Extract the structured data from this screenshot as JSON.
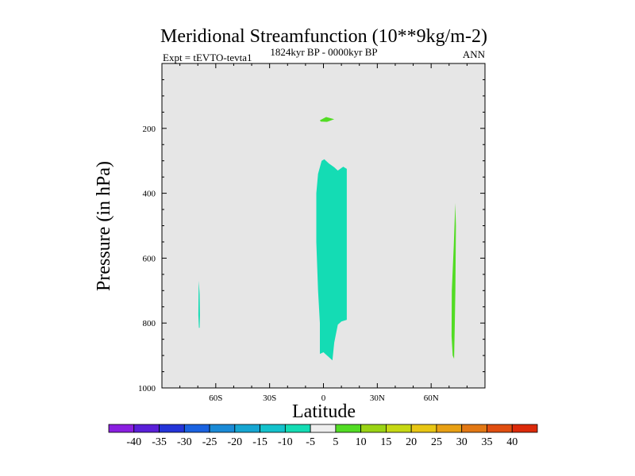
{
  "chart_data": {
    "type": "contour",
    "title": "Meridional Streamfunction (10**9kg/m-2)",
    "left_label": "Expt = tEVTO-tevta1",
    "center_label": "1824kyr BP - 0000kyr BP",
    "right_label": "ANN",
    "xlabel": "Latitude",
    "ylabel": "Pressure (in hPa)",
    "xlim": [
      -90,
      90
    ],
    "ylim": [
      1000,
      0
    ],
    "x_ticks": [
      {
        "v": -60,
        "label": "60S"
      },
      {
        "v": -30,
        "label": "30S"
      },
      {
        "v": 0,
        "label": "0"
      },
      {
        "v": 30,
        "label": "30N"
      },
      {
        "v": 60,
        "label": "60N"
      }
    ],
    "y_ticks": [
      {
        "v": 200,
        "label": "200"
      },
      {
        "v": 400,
        "label": "400"
      },
      {
        "v": 600,
        "label": "600"
      },
      {
        "v": 800,
        "label": "800"
      },
      {
        "v": 1000,
        "label": "1000"
      }
    ],
    "background_color": "#e6e6e6",
    "colorbar": {
      "labels": [
        "-40",
        "-35",
        "-30",
        "-25",
        "-20",
        "-15",
        "-10",
        "-5",
        "5",
        "10",
        "15",
        "20",
        "25",
        "30",
        "35",
        "40"
      ],
      "colors": [
        "#8a1fe0",
        "#5a1fd8",
        "#2434d8",
        "#1a62e0",
        "#1a8ad6",
        "#16a6d2",
        "#14c2cc",
        "#14dcb4",
        "#eeeeee",
        "#52dc24",
        "#9ad414",
        "#c6d814",
        "#e8c614",
        "#e8a014",
        "#e27814",
        "#e04e10",
        "#dc2a0a"
      ]
    },
    "regions": [
      {
        "name": "cell-green-upper",
        "category": "5 to 10",
        "color": "#52dc24",
        "polygon": [
          [
            -2,
            175
          ],
          [
            1.5,
            165
          ],
          [
            6,
            172
          ],
          [
            2,
            180
          ],
          [
            -1.5,
            179
          ]
        ]
      },
      {
        "name": "cell-teal-central",
        "category": "-10 to -5",
        "color": "#14dcb4",
        "polygon": [
          [
            -3,
            340
          ],
          [
            -1,
            300
          ],
          [
            0.5,
            295
          ],
          [
            3,
            308
          ],
          [
            6,
            320
          ],
          [
            8,
            330
          ],
          [
            11,
            318
          ],
          [
            13,
            325
          ],
          [
            13,
            790
          ],
          [
            10,
            795
          ],
          [
            8,
            805
          ],
          [
            6,
            860
          ],
          [
            5,
            915
          ],
          [
            3,
            905
          ],
          [
            1,
            895
          ],
          [
            0,
            890
          ],
          [
            -2,
            895
          ],
          [
            -2,
            800
          ],
          [
            -3,
            700
          ],
          [
            -4,
            550
          ],
          [
            -4,
            400
          ]
        ]
      },
      {
        "name": "cell-teal-south",
        "category": "-10 to -5",
        "color": "#14dcb4",
        "polygon": [
          [
            -69.5,
            670
          ],
          [
            -69,
            710
          ],
          [
            -68.8,
            775
          ],
          [
            -69,
            815
          ],
          [
            -69.4,
            815
          ],
          [
            -69.7,
            775
          ],
          [
            -69.6,
            720
          ]
        ]
      },
      {
        "name": "cell-green-north",
        "category": "5 to 10",
        "color": "#52dc24",
        "polygon": [
          [
            73.4,
            430
          ],
          [
            73.8,
            500
          ],
          [
            73.5,
            700
          ],
          [
            73.2,
            800
          ],
          [
            72.8,
            910
          ],
          [
            72,
            900
          ],
          [
            71.4,
            840
          ],
          [
            71.5,
            700
          ],
          [
            72.6,
            560
          ],
          [
            73.2,
            470
          ]
        ]
      }
    ]
  }
}
